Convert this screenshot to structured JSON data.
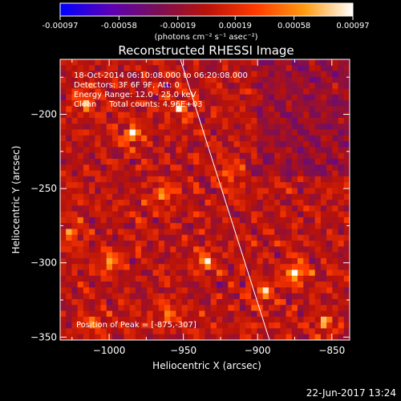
{
  "colorbar": {
    "ticks": [
      "-0.00097",
      "-0.00058",
      "-0.00019",
      "0.00019",
      "0.00058",
      "0.00097"
    ],
    "min": -0.00097,
    "max": 0.00097,
    "unit_label": "(photons cm⁻² s⁻¹ asec⁻²)",
    "colors": [
      "#0000ff",
      "#5a00b8",
      "#7a0f55",
      "#b8120a",
      "#ff3a00",
      "#ff9a10",
      "#ffffff"
    ]
  },
  "chart_data": {
    "type": "heatmap",
    "title": "Reconstructed RHESSI Image",
    "xlabel": "Heliocentric X (arcsec)",
    "ylabel": "Heliocentric Y (arcsec)",
    "xlim": [
      -1033,
      -838
    ],
    "ylim": [
      -352,
      -163
    ],
    "xticks": [
      -1000,
      -950,
      -900,
      -850
    ],
    "yticks": [
      -200,
      -250,
      -300,
      -350
    ],
    "annotations": [
      "18-Oct-2014 06:10:08.000 to 06:20:08.000",
      "Detectors: 3F 6F 9F, Att: 0",
      "Energy Range: 12.0 - 25.0 keV",
      "Clean     Total counts: 4.96E+03"
    ],
    "peak_label": "Position of Peak = [-875,-307]",
    "peak": {
      "x": -875,
      "y": -307
    },
    "limb_line": [
      {
        "x": -952,
        "y": -163
      },
      {
        "x": -892,
        "y": -352
      }
    ],
    "hotspots": [
      {
        "x": -875,
        "y": -307,
        "value": 0.00097
      },
      {
        "x": -985,
        "y": -214,
        "value": 0.00075
      },
      {
        "x": -1015,
        "y": -192,
        "value": 0.0007
      },
      {
        "x": -952,
        "y": -195,
        "value": 0.00062
      },
      {
        "x": -1000,
        "y": -300,
        "value": 0.00068
      },
      {
        "x": -935,
        "y": -300,
        "value": 0.00066
      },
      {
        "x": -965,
        "y": -255,
        "value": 0.0006
      },
      {
        "x": -920,
        "y": -240,
        "value": 0.00055
      },
      {
        "x": -895,
        "y": -320,
        "value": 0.0007
      },
      {
        "x": -855,
        "y": -340,
        "value": 0.0006
      },
      {
        "x": -1025,
        "y": -280,
        "value": 0.00055
      },
      {
        "x": -960,
        "y": -335,
        "value": 0.00058
      },
      {
        "x": -1010,
        "y": -340,
        "value": 0.00052
      }
    ]
  },
  "footer": {
    "timestamp": "22-Jun-2017 13:24"
  }
}
